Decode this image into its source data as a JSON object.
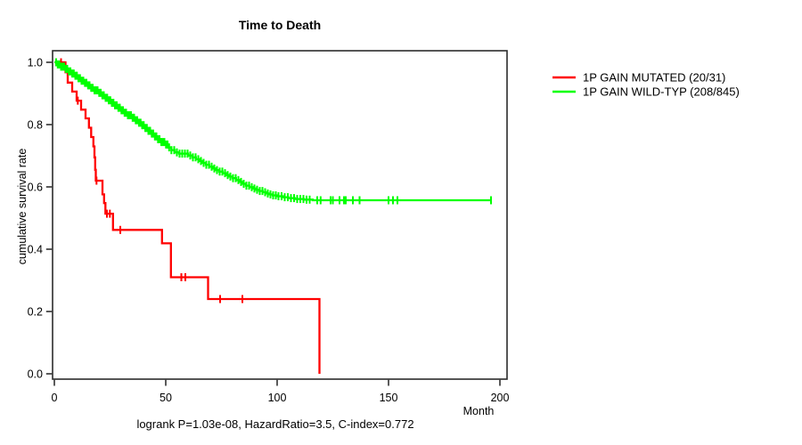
{
  "title": "Time to Death",
  "footer": "logrank P=1.03e-08, HazardRatio=3.5, C-index=0.772",
  "x_axis": {
    "label": "Month",
    "tick_values": [
      0,
      50,
      100,
      150,
      200
    ],
    "tick_labels": [
      "0",
      "50",
      "100",
      "150",
      "200"
    ],
    "range": [
      0,
      200
    ]
  },
  "y_axis": {
    "label": "cumulative survival rate",
    "tick_values": [
      0.0,
      0.2,
      0.4,
      0.6,
      0.8,
      1.0
    ],
    "tick_labels": [
      "0.0",
      "0.2",
      "0.4",
      "0.6",
      "0.8",
      "1.0"
    ],
    "range": [
      0,
      1
    ]
  },
  "legend": [
    {
      "label": "1P GAIN MUTATED (20/31)",
      "color": "#ff0000"
    },
    {
      "label": "1P GAIN WILD-TYP (208/845)",
      "color": "#00ff00"
    }
  ],
  "chart_data": {
    "type": "line",
    "subtype": "kaplan-meier-survival",
    "title": "Time to Death",
    "xlabel": "Month",
    "ylabel": "cumulative survival rate",
    "xlim": [
      0,
      200
    ],
    "ylim": [
      0.0,
      1.0
    ],
    "grid": false,
    "legend_position": "right-outside",
    "annotation": "logrank P=1.03e-08, HazardRatio=3.5, C-index=0.772",
    "series": [
      {
        "name": "1P GAIN MUTATED (20/31)",
        "color": "#ff0000",
        "events": "20/31",
        "steps": [
          [
            0,
            1.0
          ],
          [
            5,
            0.968
          ],
          [
            6,
            0.935
          ],
          [
            8,
            0.906
          ],
          [
            10,
            0.877
          ],
          [
            12,
            0.848
          ],
          [
            14,
            0.82
          ],
          [
            15.5,
            0.79
          ],
          [
            16.5,
            0.76
          ],
          [
            17.5,
            0.73
          ],
          [
            18,
            0.695
          ],
          [
            18.3,
            0.655
          ],
          [
            18.6,
            0.62
          ],
          [
            21.6,
            0.576
          ],
          [
            22.3,
            0.548
          ],
          [
            22.9,
            0.514
          ],
          [
            26.3,
            0.462
          ],
          [
            48.3,
            0.419
          ],
          [
            52.3,
            0.31
          ],
          [
            69,
            0.24
          ],
          [
            119,
            0.0
          ]
        ],
        "censor_months": [
          3,
          10.5,
          18.9,
          23.6,
          24.9,
          29.6,
          57,
          58.8,
          74.4,
          84.4
        ]
      },
      {
        "name": "1P GAIN WILD-TYP (208/845)",
        "color": "#00ff00",
        "events": "208/845",
        "steps": [
          [
            0,
            1.0
          ],
          [
            1.5,
            0.993
          ],
          [
            3,
            0.986
          ],
          [
            4.5,
            0.979
          ],
          [
            6,
            0.971
          ],
          [
            7.5,
            0.964
          ],
          [
            9,
            0.957
          ],
          [
            10.5,
            0.949
          ],
          [
            12,
            0.941
          ],
          [
            13.5,
            0.934
          ],
          [
            15,
            0.926
          ],
          [
            16.5,
            0.918
          ],
          [
            18,
            0.91
          ],
          [
            19.5,
            0.902
          ],
          [
            21,
            0.894
          ],
          [
            22.5,
            0.886
          ],
          [
            24,
            0.878
          ],
          [
            25.5,
            0.87
          ],
          [
            27,
            0.862
          ],
          [
            28.5,
            0.854
          ],
          [
            30,
            0.846
          ],
          [
            31.5,
            0.838
          ],
          [
            33,
            0.83
          ],
          [
            34.5,
            0.822
          ],
          [
            36,
            0.814
          ],
          [
            37.5,
            0.806
          ],
          [
            39,
            0.798
          ],
          [
            40.5,
            0.789
          ],
          [
            42,
            0.78
          ],
          [
            43.5,
            0.771
          ],
          [
            45,
            0.762
          ],
          [
            46.5,
            0.753
          ],
          [
            48,
            0.744
          ],
          [
            49.5,
            0.736
          ],
          [
            51,
            0.727
          ],
          [
            52.5,
            0.718
          ],
          [
            54,
            0.711
          ],
          [
            56,
            0.707
          ],
          [
            60,
            0.701
          ],
          [
            62,
            0.695
          ],
          [
            63.5,
            0.689
          ],
          [
            65,
            0.683
          ],
          [
            66.5,
            0.677
          ],
          [
            68,
            0.671
          ],
          [
            69.5,
            0.665
          ],
          [
            71,
            0.659
          ],
          [
            72.5,
            0.654
          ],
          [
            74,
            0.649
          ],
          [
            75.5,
            0.644
          ],
          [
            77,
            0.638
          ],
          [
            78.5,
            0.633
          ],
          [
            80,
            0.628
          ],
          [
            81.5,
            0.622
          ],
          [
            83,
            0.616
          ],
          [
            84.5,
            0.61
          ],
          [
            86,
            0.604
          ],
          [
            87.5,
            0.599
          ],
          [
            89,
            0.595
          ],
          [
            90.5,
            0.591
          ],
          [
            92,
            0.587
          ],
          [
            93.5,
            0.583
          ],
          [
            95,
            0.579
          ],
          [
            96.5,
            0.576
          ],
          [
            98,
            0.573
          ],
          [
            100,
            0.57
          ],
          [
            102.5,
            0.567
          ],
          [
            105,
            0.564
          ],
          [
            108,
            0.561
          ],
          [
            112,
            0.559
          ],
          [
            116,
            0.557
          ],
          [
            196,
            0.557
          ]
        ],
        "censor_months": [
          0.8,
          1.5,
          2.2,
          3,
          3.7,
          4.4,
          5.1,
          5.8,
          6.5,
          7.2,
          8,
          8.7,
          9.4,
          10.1,
          10.8,
          11.5,
          12.2,
          13,
          13.7,
          14.4,
          15.1,
          15.8,
          16.5,
          17.2,
          18,
          18.7,
          19.4,
          20.1,
          20.8,
          21.5,
          22.2,
          23,
          23.7,
          24.4,
          25.1,
          25.8,
          26.5,
          27.2,
          28,
          28.7,
          29.4,
          30.1,
          30.8,
          31.5,
          32.2,
          33,
          33.7,
          34.4,
          35.1,
          35.8,
          36.5,
          37.2,
          38,
          38.7,
          39.4,
          40.1,
          40.8,
          41.5,
          42.2,
          43,
          43.7,
          44.4,
          45.1,
          45.8,
          46.5,
          47.2,
          48,
          48.7,
          49.4,
          50.1,
          50.8,
          51.5,
          52.5,
          53.8,
          55,
          56.2,
          57.4,
          58.6,
          59.8,
          61,
          62.2,
          63.4,
          64.6,
          65.8,
          67,
          68.2,
          69.4,
          70.6,
          71.8,
          73,
          74.2,
          75.4,
          76.6,
          77.8,
          79,
          80.2,
          81.4,
          82.6,
          83.8,
          85,
          86.2,
          87.4,
          88.6,
          89.8,
          91,
          92.2,
          93.4,
          94.6,
          95.8,
          97,
          98.2,
          99.4,
          100.6,
          102,
          103.4,
          104.8,
          106.2,
          107.6,
          109,
          110.4,
          111.8,
          113.2,
          114.6,
          118,
          119.5,
          124,
          125,
          128,
          130,
          130.8,
          134,
          137,
          150,
          152,
          154,
          196
        ]
      }
    ]
  }
}
